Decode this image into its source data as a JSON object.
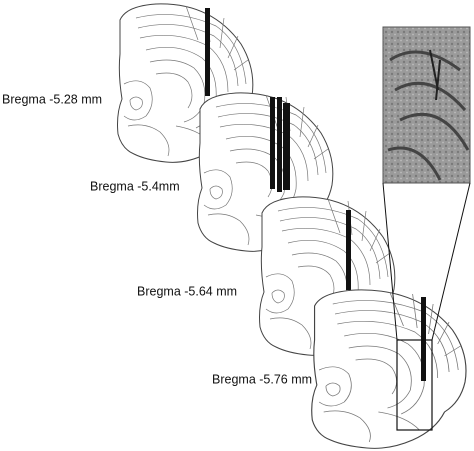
{
  "labels": [
    "Bregma -5.28 mm",
    "Bregma -5.4mm",
    "Bregma -5.64 mm",
    "Bregma -5.76 mm"
  ]
}
